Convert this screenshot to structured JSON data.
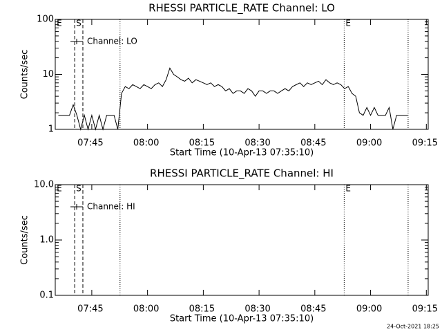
{
  "chart_data": [
    {
      "type": "line",
      "title": "RHESSI PARTICLE_RATE Channel: LO",
      "xlabel": "Start Time (10-Apr-13 07:35:10)",
      "ylabel": "Counts/sec",
      "log_y": true,
      "xlim": [
        455.17,
        555.5
      ],
      "ylim": [
        1,
        100
      ],
      "yticks": [
        1,
        10,
        100
      ],
      "xticks": [
        {
          "value": 465,
          "label": "07:45"
        },
        {
          "value": 480,
          "label": "08:00"
        },
        {
          "value": 495,
          "label": "08:15"
        },
        {
          "value": 510,
          "label": "08:30"
        },
        {
          "value": 525,
          "label": "08:45"
        },
        {
          "value": 540,
          "label": "09:00"
        },
        {
          "value": 555,
          "label": "09:15"
        }
      ],
      "markers": [
        {
          "x": 455.2,
          "style": "none",
          "label": "E"
        },
        {
          "x": 460.4,
          "style": "dashed",
          "label": "S"
        },
        {
          "x": 462.6,
          "style": "dashed"
        },
        {
          "x": 472.6,
          "style": "dotted"
        },
        {
          "x": 532.9,
          "style": "dotted",
          "label": "E"
        },
        {
          "x": 550.1,
          "style": "dotted"
        }
      ],
      "x": [
        456,
        457,
        458,
        459,
        460,
        461,
        462,
        463,
        464,
        465,
        466,
        467,
        468,
        469,
        470,
        471,
        472,
        473,
        474,
        475,
        476,
        477,
        478,
        479,
        480,
        481,
        482,
        483,
        484,
        485,
        486,
        487,
        488,
        489,
        490,
        491,
        492,
        493,
        494,
        495,
        496,
        497,
        498,
        499,
        500,
        501,
        502,
        503,
        504,
        505,
        506,
        507,
        508,
        509,
        510,
        511,
        512,
        513,
        514,
        515,
        516,
        517,
        518,
        519,
        520,
        521,
        522,
        523,
        524,
        525,
        526,
        527,
        528,
        529,
        530,
        531,
        532,
        533,
        534,
        535,
        536,
        537,
        538,
        539,
        540,
        541,
        542,
        543,
        544,
        545,
        546,
        547,
        548,
        549,
        550
      ],
      "series": [
        {
          "name": "Channel: LO",
          "color": "#000000",
          "values": [
            1.8,
            1.8,
            1.8,
            1.8,
            2.8,
            1.8,
            1,
            1.8,
            1,
            1.8,
            1,
            1.8,
            1,
            1.8,
            1.8,
            1.8,
            1,
            4.5,
            6,
            5.5,
            6.5,
            6,
            5.5,
            6.5,
            6,
            5.5,
            6.5,
            7,
            6,
            8,
            13,
            10,
            9,
            8,
            7.5,
            8.5,
            7,
            8,
            7.5,
            7,
            6.5,
            7,
            6,
            6.5,
            6,
            5,
            5.5,
            4.5,
            5,
            5,
            4.5,
            5.5,
            5,
            4,
            5,
            5,
            4.5,
            5,
            5,
            4.5,
            5,
            5.5,
            5,
            6,
            6.5,
            7,
            6,
            7,
            6.5,
            7,
            7.5,
            6.5,
            8,
            7,
            6.5,
            7,
            6.5,
            5.5,
            6,
            4.5,
            4,
            2,
            1.8,
            2.5,
            1.8,
            2.5,
            1.8,
            1.8,
            1.8,
            2.5,
            1,
            1.8,
            1.8,
            1.8,
            1.8
          ]
        }
      ]
    },
    {
      "type": "line",
      "title": "RHESSI PARTICLE_RATE Channel: HI",
      "xlabel": "Start Time (10-Apr-13 07:35:10)",
      "ylabel": "Counts/sec",
      "log_y": true,
      "xlim": [
        455.17,
        555.5
      ],
      "ylim": [
        0.1,
        10
      ],
      "yticks": [
        0.1,
        {
          "value": 1,
          "label": "1.0"
        },
        {
          "value": 10,
          "label": "10.0"
        }
      ],
      "xticks": [
        {
          "value": 465,
          "label": "07:45"
        },
        {
          "value": 480,
          "label": "08:00"
        },
        {
          "value": 495,
          "label": "08:15"
        },
        {
          "value": 510,
          "label": "08:30"
        },
        {
          "value": 525,
          "label": "08:45"
        },
        {
          "value": 540,
          "label": "09:00"
        },
        {
          "value": 555,
          "label": "09:15"
        }
      ],
      "markers": [
        {
          "x": 455.2,
          "style": "none",
          "label": "E"
        },
        {
          "x": 460.4,
          "style": "dashed",
          "label": "S"
        },
        {
          "x": 462.6,
          "style": "dashed"
        },
        {
          "x": 472.6,
          "style": "dotted"
        },
        {
          "x": 532.9,
          "style": "dotted",
          "label": "E"
        },
        {
          "x": 550.1,
          "style": "dotted"
        }
      ],
      "x": [],
      "series": [
        {
          "name": "Channel: HI",
          "color": "#000000",
          "values": []
        }
      ]
    }
  ],
  "footer": "24-Oct-2021 18:25"
}
